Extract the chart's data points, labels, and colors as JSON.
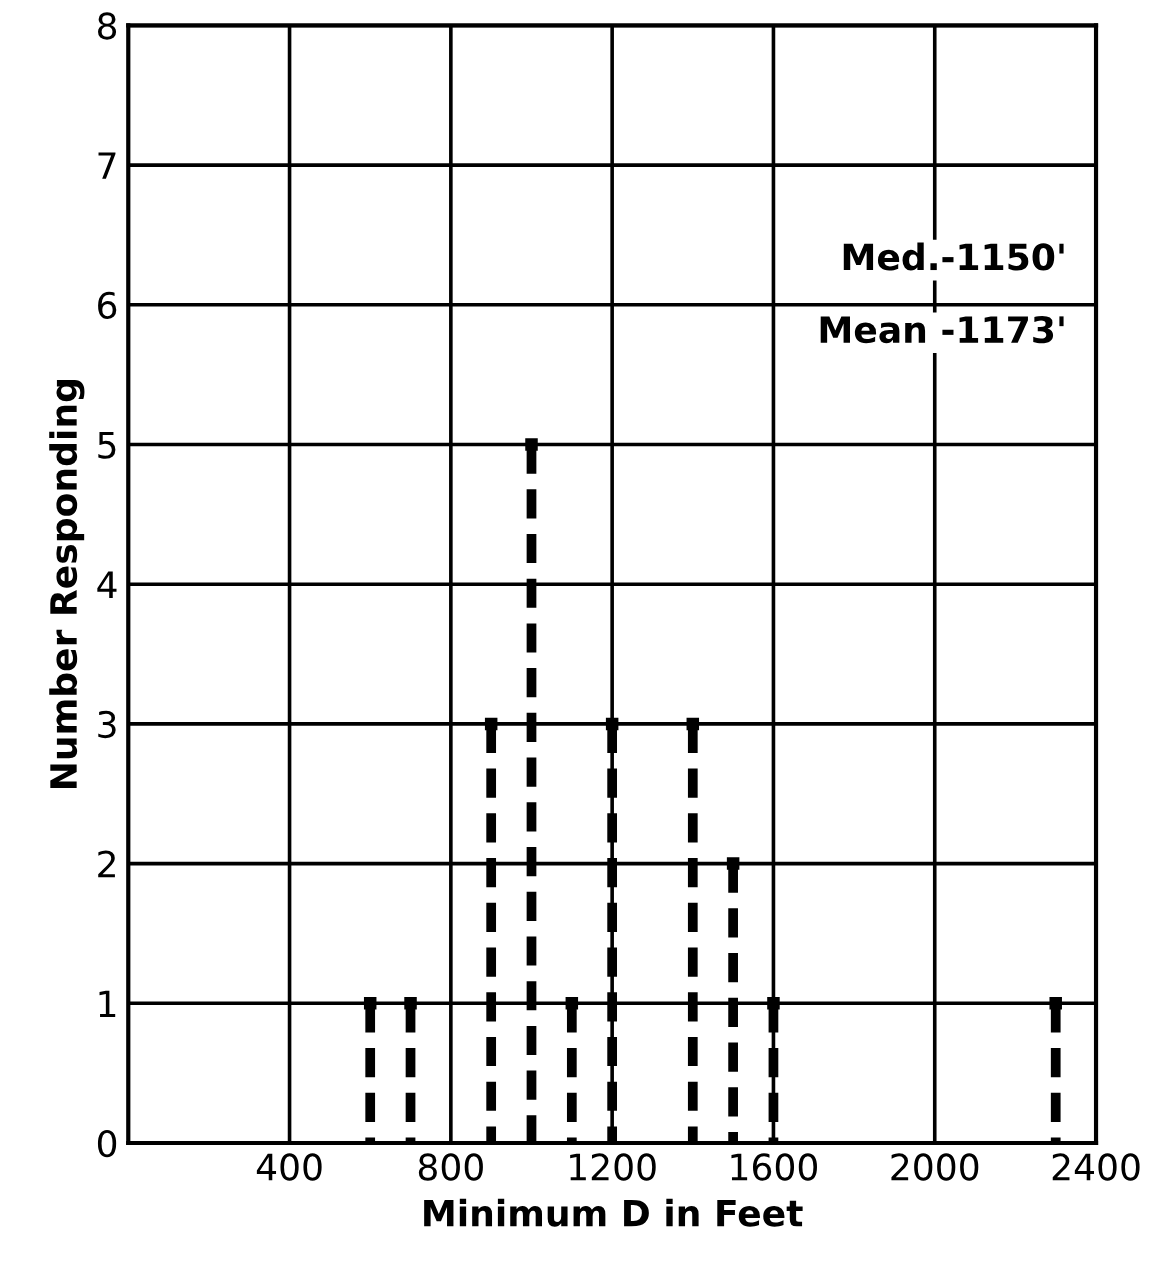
{
  "chart_data": {
    "type": "lollipop",
    "xlabel": "Minimum D in Feet",
    "ylabel": "Number Responding",
    "x": [
      600,
      700,
      900,
      1000,
      1100,
      1200,
      1400,
      1500,
      1600,
      2300
    ],
    "values": [
      1,
      1,
      3,
      5,
      1,
      3,
      3,
      2,
      1,
      1
    ],
    "color": "#000000",
    "marker": "square",
    "line_style": "dashed",
    "xlim": [
      0,
      2400
    ],
    "xticks": [
      {
        "value": 0,
        "label": null
      },
      400,
      800,
      1200,
      1600,
      2000,
      2400
    ],
    "ylim": [
      0,
      8
    ],
    "yticks": [
      0,
      1,
      2,
      3,
      4,
      5,
      6,
      7,
      8
    ],
    "grid": true,
    "annotations": [
      "Med.-1150'",
      "Mean -1173'"
    ]
  }
}
